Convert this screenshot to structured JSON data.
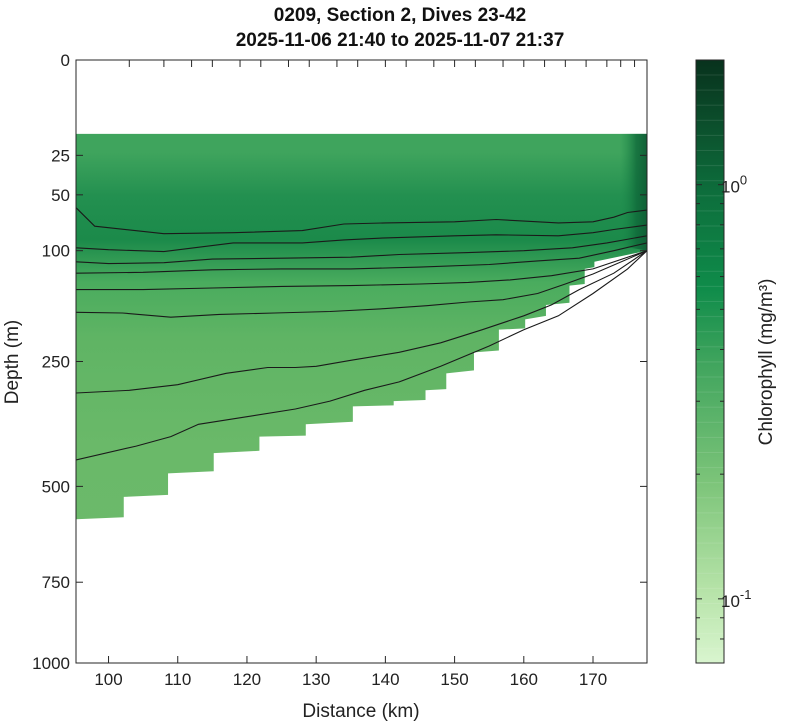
{
  "chart_data": {
    "type": "heatmap",
    "title": "0209, Section 2, Dives 23-42",
    "subtitle": "2025-11-06 21:40 to 2025-11-07 21:37",
    "xlabel": "Distance (km)",
    "ylabel": "Depth (m)",
    "colorbar_label": "Chlorophyll (mg/m³)",
    "xlim": [
      95.3,
      177.8
    ],
    "ylim": [
      0,
      1000
    ],
    "y_scale": "square-root",
    "colorbar_scale": "log",
    "colorbar_range": [
      0.07,
      2.0
    ],
    "x_ticks": [
      100,
      110,
      120,
      130,
      140,
      150,
      160,
      170
    ],
    "x_tick_labels": [
      "100",
      "110",
      "120",
      "130",
      "140",
      "150",
      "160",
      "170"
    ],
    "x_minor_top_ticks": [
      103,
      108,
      112,
      115,
      119,
      122,
      126,
      129,
      133,
      136,
      140,
      143,
      147,
      150,
      153,
      157,
      160,
      163,
      166,
      169,
      172,
      174,
      176
    ],
    "y_ticks": [
      0,
      25,
      50,
      100,
      250,
      500,
      750,
      1000
    ],
    "y_tick_labels": [
      "0",
      "25",
      "50",
      "100",
      "250",
      "500",
      "750",
      "1000"
    ],
    "colorbar_ticks": [
      1.0,
      0.1
    ],
    "colorbar_tick_labels": [
      "10^0",
      "10^-1"
    ],
    "top_of_data_depth": 15,
    "data_bottom_boundary": {
      "x": [
        95.3,
        102.2,
        102.2,
        108.6,
        108.6,
        115.2,
        115.2,
        121.8,
        121.8,
        128.5,
        128.5,
        135.3,
        135.3,
        141.2,
        141.2,
        145.8,
        145.8,
        148.8,
        148.8,
        152.8,
        152.8,
        156.4,
        156.4,
        160.2,
        160.2,
        163.2,
        163.2,
        166.6,
        166.6,
        168.8,
        168.8,
        170.2,
        170.2,
        177.8
      ],
      "depth": [
        580,
        575,
        525,
        520,
        470,
        465,
        425,
        420,
        390,
        388,
        365,
        360,
        330,
        328,
        320,
        318,
        300,
        298,
        270,
        265,
        235,
        232,
        200,
        198,
        185,
        180,
        165,
        162,
        140,
        138,
        120,
        118,
        112,
        100
      ]
    },
    "isolines": [
      {
        "x": [
          95.3,
          98,
          108,
          118,
          128,
          134,
          140,
          150,
          156,
          165,
          170,
          173,
          175,
          177.8
        ],
        "depth": [
          60,
          76,
          83,
          82,
          80,
          74,
          73,
          72,
          70,
          73,
          72,
          68,
          64,
          62
        ]
      },
      {
        "x": [
          95.3,
          100,
          108,
          118,
          128,
          134,
          140,
          150,
          156,
          165,
          170,
          173,
          177.8
        ],
        "depth": [
          97,
          99,
          101,
          92,
          92,
          89,
          87,
          85,
          84,
          85,
          82,
          79,
          75
        ]
      },
      {
        "x": [
          95.3,
          100,
          108,
          115,
          125,
          135,
          142,
          152,
          160,
          167,
          172,
          177.8
        ],
        "depth": [
          112,
          114,
          113,
          109,
          108,
          107,
          104,
          102,
          100,
          97,
          92,
          85
        ]
      },
      {
        "x": [
          95.3,
          105,
          115,
          125,
          135,
          145,
          155,
          162,
          168,
          173,
          177.8
        ],
        "depth": [
          125,
          124,
          121,
          120,
          120,
          118,
          115,
          111,
          108,
          100,
          92
        ]
      },
      {
        "x": [
          95.3,
          105,
          115,
          125,
          135,
          145,
          152,
          158,
          164,
          170,
          177.8
        ],
        "depth": [
          145,
          145,
          143,
          141,
          140,
          138,
          136,
          133,
          128,
          120,
          100
        ]
      },
      {
        "x": [
          95.3,
          102,
          109,
          116,
          124,
          132,
          140,
          146,
          152,
          157,
          162,
          166,
          170,
          177.8
        ],
        "depth": [
          175,
          176,
          182,
          178,
          176,
          174,
          170,
          166,
          161,
          158,
          150,
          138,
          126,
          100
        ]
      },
      {
        "x": [
          95.3,
          103,
          110,
          117,
          123,
          127,
          130,
          135,
          142,
          148,
          154,
          160,
          164,
          168,
          173,
          177.8
        ],
        "depth": [
          305,
          300,
          290,
          270,
          260,
          260,
          258,
          248,
          235,
          220,
          200,
          180,
          165,
          145,
          125,
          100
        ]
      },
      {
        "x": [
          95.3,
          104,
          109,
          113,
          120,
          127,
          132,
          137,
          142,
          148,
          155,
          160,
          165,
          170,
          175,
          177.8
        ],
        "depth": [
          440,
          410,
          390,
          365,
          350,
          335,
          320,
          300,
          285,
          258,
          225,
          200,
          180,
          150,
          120,
          100
        ]
      }
    ]
  }
}
